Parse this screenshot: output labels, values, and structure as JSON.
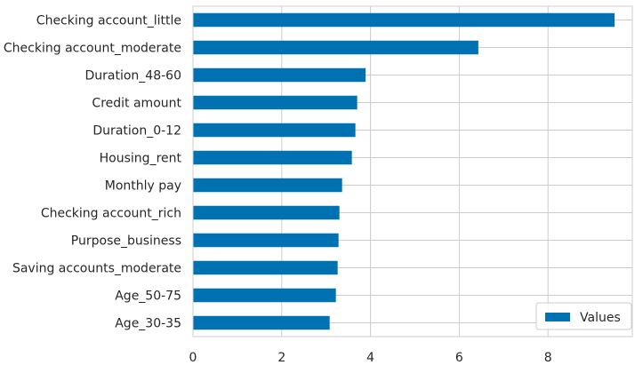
{
  "chart_data": {
    "type": "bar",
    "orientation": "horizontal",
    "categories": [
      "Checking account_little",
      "Checking account_moderate",
      "Duration_48-60",
      "Credit amount",
      "Duration_0-12",
      "Housing_rent",
      "Monthly pay",
      "Checking account_rich",
      "Purpose_business",
      "Saving accounts_moderate",
      "Age_50-75",
      "Age_30-35"
    ],
    "series": [
      {
        "name": "Values",
        "values": [
          9.5,
          6.43,
          3.89,
          3.7,
          3.66,
          3.58,
          3.36,
          3.3,
          3.28,
          3.26,
          3.22,
          3.08
        ],
        "color": "#0072B2"
      }
    ],
    "xlim": [
      0,
      9.9
    ],
    "xticks": [
      0,
      2,
      4,
      6,
      8
    ],
    "grid": true,
    "legend": {
      "position": "bottom-right",
      "entries": [
        "Values"
      ]
    },
    "title": "",
    "xlabel": "",
    "ylabel": ""
  }
}
